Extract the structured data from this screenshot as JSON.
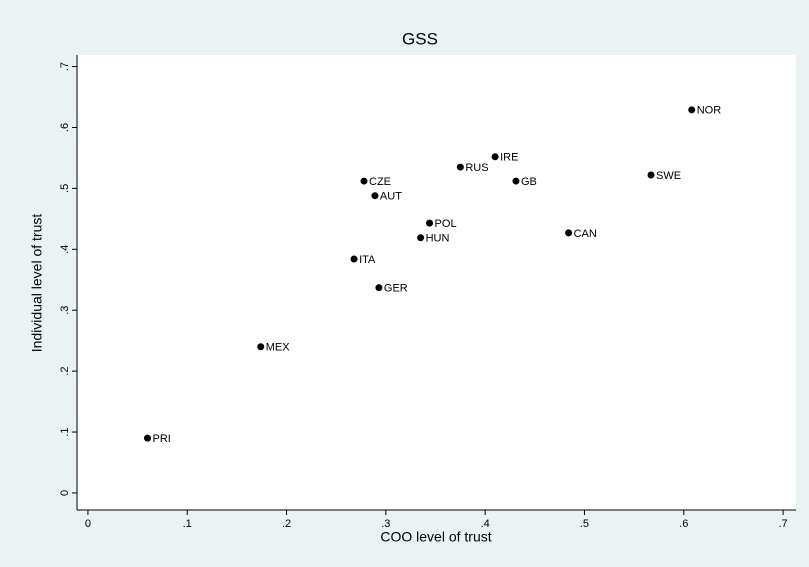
{
  "chart_data": {
    "type": "scatter",
    "title": "GSS",
    "x_label": "COO level of trust",
    "y_label": "Individual level of trust",
    "labels": [
      "PRI",
      "MEX",
      "ITA",
      "GER",
      "CZE",
      "AUT",
      "POL",
      "HUN",
      "RUS",
      "IRE",
      "GB",
      "CAN",
      "SWE",
      "NOR"
    ],
    "x": [
      0.06,
      0.174,
      0.268,
      0.293,
      0.278,
      0.289,
      0.344,
      0.335,
      0.375,
      0.41,
      0.431,
      0.484,
      0.567,
      0.608
    ],
    "values": [
      0.09,
      0.24,
      0.384,
      0.337,
      0.512,
      0.488,
      0.443,
      0.419,
      0.535,
      0.552,
      0.512,
      0.427,
      0.522,
      0.629
    ],
    "color": "#000000",
    "xlim": [
      -0.011,
      0.713
    ],
    "ylim": [
      -0.028,
      0.719
    ],
    "xticks": [
      0,
      {
        "value": 0.1,
        "label": ".1"
      },
      {
        "value": 0.2,
        "label": ".2"
      },
      {
        "value": 0.3,
        "label": ".3"
      },
      {
        "value": 0.4,
        "label": ".4"
      },
      {
        "value": 0.5,
        "label": ".5"
      },
      {
        "value": 0.6,
        "label": ".6"
      },
      {
        "value": 0.7,
        "label": ".7"
      }
    ],
    "yticks": [
      0,
      {
        "value": 0.1,
        "label": ".1"
      },
      {
        "value": 0.2,
        "label": ".2"
      },
      {
        "value": 0.3,
        "label": ".3"
      },
      {
        "value": 0.4,
        "label": ".4"
      },
      {
        "value": 0.5,
        "label": ".5"
      },
      {
        "value": 0.6,
        "label": ".6"
      },
      {
        "value": 0.7,
        "label": ".7"
      }
    ],
    "grid": false
  }
}
